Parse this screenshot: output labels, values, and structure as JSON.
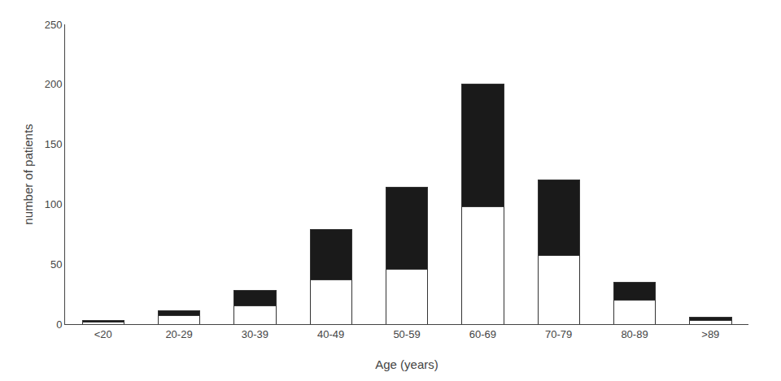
{
  "chart_data": {
    "type": "bar",
    "stacked": true,
    "categories": [
      "<20",
      "20-29",
      "30-39",
      "40-49",
      "50-59",
      "60-69",
      "70-79",
      "80-89",
      ">89"
    ],
    "series": [
      {
        "color": "#ffffff",
        "values": [
          2,
          7,
          15,
          37,
          46,
          98,
          57,
          20,
          3
        ]
      },
      {
        "color": "#1a1a1a",
        "values": [
          1,
          4,
          13,
          42,
          68,
          102,
          63,
          15,
          3
        ]
      }
    ],
    "xlabel": "Age (years)",
    "ylabel": "number of patients",
    "ylim": [
      0,
      250
    ],
    "yticks": [
      0,
      50,
      100,
      150,
      200,
      250
    ],
    "grid": false
  }
}
